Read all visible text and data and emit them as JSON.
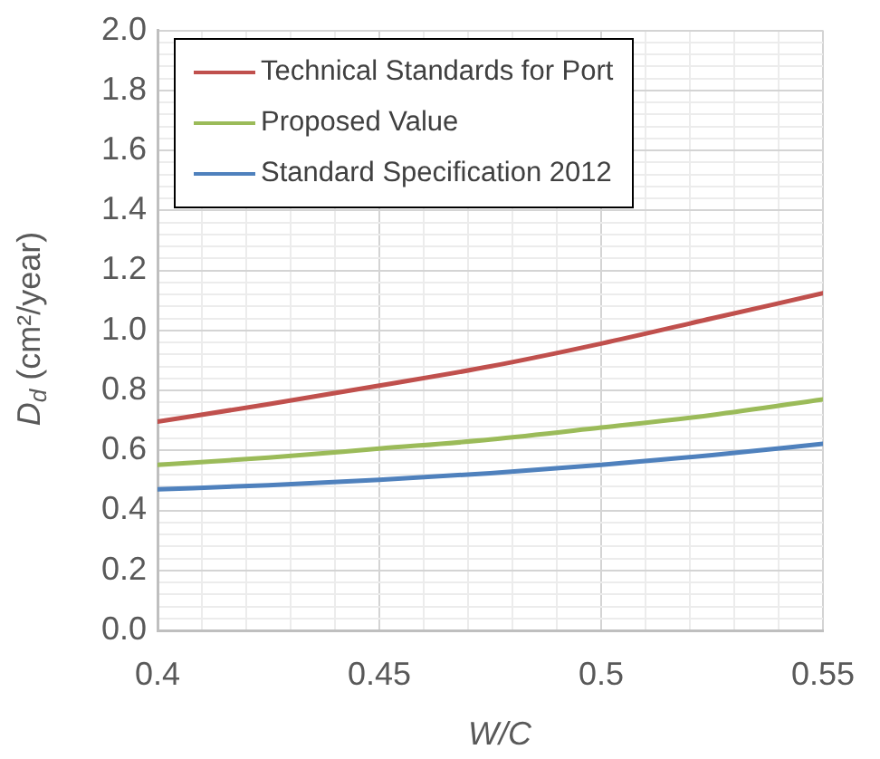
{
  "chart_data": {
    "type": "line",
    "xlabel": "W/C",
    "ylabel": "D$_{d}$ (cm²/year)",
    "x": [
      0.4,
      0.425,
      0.45,
      0.475,
      0.5,
      0.525,
      0.55
    ],
    "series": [
      {
        "name": "Technical Standards for Port",
        "color": "#c0504d",
        "values": [
          0.696,
          0.754,
          0.816,
          0.88,
          0.956,
          1.04,
          1.124
        ]
      },
      {
        "name": "Proposed Value",
        "color": "#9bbb59",
        "values": [
          0.552,
          0.576,
          0.606,
          0.636,
          0.676,
          0.718,
          0.77
        ]
      },
      {
        "name": "Standard Specification 2012",
        "color": "#4f81bd",
        "values": [
          0.47,
          0.484,
          0.502,
          0.524,
          0.552,
          0.584,
          0.622
        ]
      }
    ],
    "xlim": [
      0.4,
      0.55
    ],
    "xticks": [
      0.4,
      {
        "value": 0.41,
        "label": null
      },
      {
        "value": 0.42,
        "label": null
      },
      {
        "value": 0.43,
        "label": null
      },
      {
        "value": 0.44,
        "label": null
      },
      0.45,
      {
        "value": 0.46,
        "label": null
      },
      {
        "value": 0.47,
        "label": null
      },
      {
        "value": 0.48,
        "label": null
      },
      {
        "value": 0.49,
        "label": null
      },
      0.5,
      {
        "value": 0.51,
        "label": null
      },
      {
        "value": 0.52,
        "label": null
      },
      {
        "value": 0.53,
        "label": null
      },
      {
        "value": 0.54,
        "label": null
      },
      0.55
    ],
    "ylim": [
      0,
      2
    ],
    "yticks": [
      {
        "value": 0,
        "label": "0.0"
      },
      {
        "value": 0.04,
        "label": null
      },
      {
        "value": 0.08,
        "label": null
      },
      {
        "value": 0.12,
        "label": null
      },
      {
        "value": 0.16,
        "label": null
      },
      0.2,
      {
        "value": 0.24,
        "label": null
      },
      {
        "value": 0.28,
        "label": null
      },
      {
        "value": 0.32,
        "label": null
      },
      {
        "value": 0.36,
        "label": null
      },
      0.4,
      {
        "value": 0.44,
        "label": null
      },
      {
        "value": 0.48,
        "label": null
      },
      {
        "value": 0.52,
        "label": null
      },
      {
        "value": 0.56,
        "label": null
      },
      0.6,
      {
        "value": 0.64,
        "label": null
      },
      {
        "value": 0.68,
        "label": null
      },
      {
        "value": 0.72,
        "label": null
      },
      {
        "value": 0.76,
        "label": null
      },
      0.8,
      {
        "value": 0.84,
        "label": null
      },
      {
        "value": 0.88,
        "label": null
      },
      {
        "value": 0.92,
        "label": null
      },
      {
        "value": 0.96,
        "label": null
      },
      {
        "value": 1,
        "label": "1.0"
      },
      {
        "value": 1.04,
        "label": null
      },
      {
        "value": 1.08,
        "label": null
      },
      {
        "value": 1.12,
        "label": null
      },
      {
        "value": 1.16,
        "label": null
      },
      1.2,
      {
        "value": 1.24,
        "label": null
      },
      {
        "value": 1.28,
        "label": null
      },
      {
        "value": 1.32,
        "label": null
      },
      {
        "value": 1.36,
        "label": null
      },
      1.4,
      {
        "value": 1.44,
        "label": null
      },
      {
        "value": 1.48,
        "label": null
      },
      {
        "value": 1.52,
        "label": null
      },
      {
        "value": 1.56,
        "label": null
      },
      1.6,
      {
        "value": 1.64,
        "label": null
      },
      {
        "value": 1.68,
        "label": null
      },
      {
        "value": 1.72,
        "label": null
      },
      {
        "value": 1.76,
        "label": null
      },
      1.8,
      {
        "value": 1.84,
        "label": null
      },
      {
        "value": 1.88,
        "label": null
      },
      {
        "value": 1.92,
        "label": null
      },
      {
        "value": 1.96,
        "label": null
      },
      {
        "value": 2,
        "label": "2.0"
      }
    ],
    "grid": true,
    "legend": "top left",
    "marker": "none",
    "line_style": "solid"
  }
}
